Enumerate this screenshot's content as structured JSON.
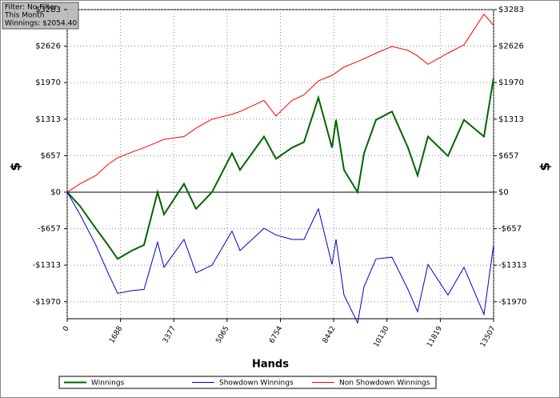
{
  "chart_data": {
    "type": "line",
    "info": [
      "Filter: No Filter",
      "This Month",
      "Winnings: $2054.40"
    ],
    "xlabel": "Hands",
    "ylabel": "$",
    "y2label": "$",
    "x": [
      0,
      405,
      912,
      1292,
      1597,
      2053,
      2433,
      2863,
      3066,
      3700,
      4080,
      4587,
      5220,
      5474,
      6234,
      6614,
      7121,
      7501,
      7957,
      8388,
      8515,
      8768,
      9199,
      9402,
      9782,
      10288,
      10795,
      11099,
      11428,
      12062,
      12569,
      13202,
      13507
    ],
    "series": [
      {
        "name": "Winnings",
        "color": "#006400",
        "values": [
          0,
          -250,
          -657,
          -950,
          -1200,
          -1050,
          -950,
          0,
          -400,
          150,
          -300,
          0,
          700,
          400,
          1000,
          600,
          800,
          900,
          1700,
          800,
          1300,
          400,
          0,
          700,
          1300,
          1450,
          800,
          300,
          1000,
          650,
          1300,
          1000,
          2054.4
        ]
      },
      {
        "name": "Showdown Winnings",
        "color": "#0000cc",
        "values": [
          0,
          -400,
          -957,
          -1450,
          -1820,
          -1770,
          -1750,
          -900,
          -1350,
          -850,
          -1450,
          -1313,
          -700,
          -1050,
          -650,
          -770,
          -850,
          -850,
          -300,
          -1300,
          -850,
          -1850,
          -2350,
          -1700,
          -1200,
          -1170,
          -1750,
          -2150,
          -1300,
          -1850,
          -1350,
          -2200,
          -946
        ]
      },
      {
        "name": "Non Showdown Winnings",
        "color": "#ff0000",
        "values": [
          0,
          150,
          300,
          500,
          620,
          720,
          800,
          900,
          950,
          1000,
          1150,
          1313,
          1400,
          1450,
          1650,
          1370,
          1650,
          1750,
          2000,
          2100,
          2150,
          2250,
          2350,
          2400,
          2500,
          2620,
          2550,
          2450,
          2300,
          2500,
          2650,
          3200,
          3000
        ]
      }
    ],
    "xlim": [
      0,
      13507
    ],
    "xticks": [
      0,
      1688,
      3377,
      5065,
      6754,
      8442,
      10130,
      11819,
      13507
    ],
    "ylim": [
      -2276,
      3283
    ],
    "yticks": [
      {
        "value": -1970,
        "label": "-$1970"
      },
      {
        "value": -1313,
        "label": "-$1313"
      },
      {
        "value": -657,
        "label": "-$657"
      },
      {
        "value": 0,
        "label": "$0"
      },
      {
        "value": 657,
        "label": "$657"
      },
      {
        "value": 1313,
        "label": "$1313"
      },
      {
        "value": 1970,
        "label": "$1970"
      },
      {
        "value": 2626,
        "label": "$2626"
      },
      {
        "value": 3283,
        "label": "$3283"
      }
    ],
    "grid": true,
    "legend": "bottom"
  }
}
